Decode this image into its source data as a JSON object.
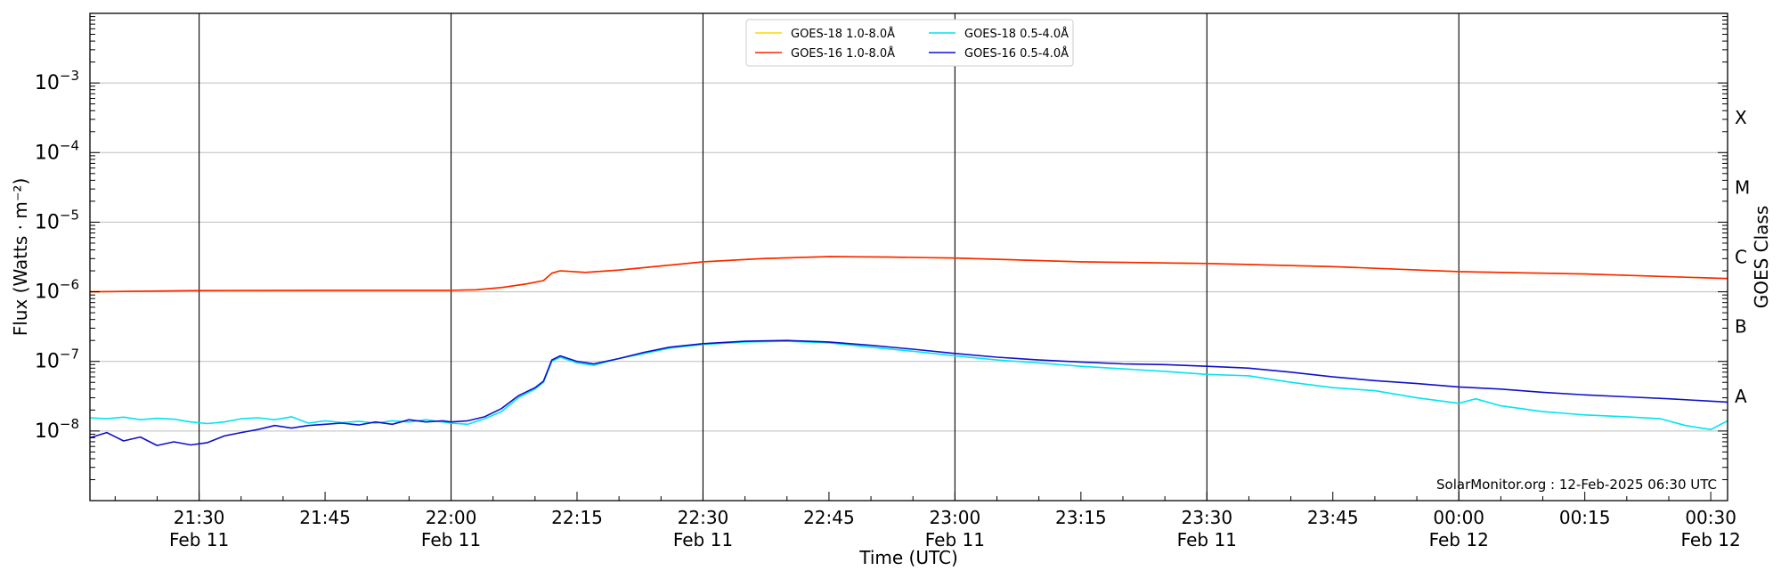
{
  "chart_data": {
    "type": "line",
    "title": "",
    "xlabel": "Time (UTC)",
    "ylabel": "Flux (Watts · m⁻²)",
    "ylabel_right": "GOES Class",
    "yscale": "log",
    "ylim": [
      1e-09,
      0.01
    ],
    "xlim": [
      "2025-02-11 21:17",
      "2025-02-12 00:32"
    ],
    "y_ticks": [
      {
        "value": 1e-08,
        "base": "10",
        "exp": "−8"
      },
      {
        "value": 1e-07,
        "base": "10",
        "exp": "−7"
      },
      {
        "value": 1e-06,
        "base": "10",
        "exp": "−6"
      },
      {
        "value": 1e-05,
        "base": "10",
        "exp": "−5"
      },
      {
        "value": 0.0001,
        "base": "10",
        "exp": "−4"
      },
      {
        "value": 0.001,
        "base": "10",
        "exp": "−3"
      }
    ],
    "x_ticks": [
      {
        "time": "21:30",
        "label": "21:30",
        "date": "Feb 11"
      },
      {
        "time": "21:45",
        "label": "21:45",
        "date": ""
      },
      {
        "time": "22:00",
        "label": "22:00",
        "date": "Feb 11"
      },
      {
        "time": "22:15",
        "label": "22:15",
        "date": ""
      },
      {
        "time": "22:30",
        "label": "22:30",
        "date": "Feb 11"
      },
      {
        "time": "22:45",
        "label": "22:45",
        "date": ""
      },
      {
        "time": "23:00",
        "label": "23:00",
        "date": "Feb 11"
      },
      {
        "time": "23:15",
        "label": "23:15",
        "date": ""
      },
      {
        "time": "23:30",
        "label": "23:30",
        "date": "Feb 11"
      },
      {
        "time": "23:45",
        "label": "23:45",
        "date": ""
      },
      {
        "time": "24:00",
        "label": "00:00",
        "date": "Feb 12"
      },
      {
        "time": "24:15",
        "label": "00:15",
        "date": ""
      },
      {
        "time": "24:30",
        "label": "00:30",
        "date": "Feb 12"
      }
    ],
    "class_levels": [
      {
        "label": "A",
        "min": 1e-08,
        "max": 1e-07
      },
      {
        "label": "B",
        "min": 1e-07,
        "max": 1e-06
      },
      {
        "label": "C",
        "min": 1e-06,
        "max": 1e-05
      },
      {
        "label": "M",
        "min": 1e-05,
        "max": 0.0001
      },
      {
        "label": "X",
        "min": 0.0001,
        "max": 0.001
      }
    ],
    "horizontal_grid": true,
    "vertical_lines_at": [
      "21:30",
      "22:00",
      "22:30",
      "23:00",
      "23:30",
      "24:00"
    ],
    "legend_position": "top-center",
    "annotation": "SolarMonitor.org : 12-Feb-2025 06:30 UTC",
    "series": [
      {
        "name": "GOES-18 1.0-8.0Å",
        "color": "#ffd700",
        "points": [
          [
            "21:17",
            1e-06
          ],
          [
            "21:30",
            1.04e-06
          ],
          [
            "21:45",
            1.05e-06
          ],
          [
            "22:00",
            1.05e-06
          ],
          [
            "22:03",
            1.07e-06
          ],
          [
            "22:06",
            1.15e-06
          ],
          [
            "22:09",
            1.3e-06
          ],
          [
            "22:11",
            1.45e-06
          ],
          [
            "22:12",
            1.85e-06
          ],
          [
            "22:13",
            2e-06
          ],
          [
            "22:16",
            1.9e-06
          ],
          [
            "22:20",
            2.05e-06
          ],
          [
            "22:25",
            2.35e-06
          ],
          [
            "22:30",
            2.7e-06
          ],
          [
            "22:37",
            3e-06
          ],
          [
            "22:45",
            3.2e-06
          ],
          [
            "22:52",
            3.15e-06
          ],
          [
            "23:00",
            3.05e-06
          ],
          [
            "23:15",
            2.7e-06
          ],
          [
            "23:30",
            2.55e-06
          ],
          [
            "23:45",
            2.3e-06
          ],
          [
            "24:00",
            1.95e-06
          ],
          [
            "24:15",
            1.8e-06
          ],
          [
            "24:32",
            1.55e-06
          ]
        ]
      },
      {
        "name": "GOES-16 1.0-8.0Å",
        "color": "#ff2200",
        "points": [
          [
            "21:17",
            1e-06
          ],
          [
            "21:30",
            1.04e-06
          ],
          [
            "21:45",
            1.05e-06
          ],
          [
            "22:00",
            1.05e-06
          ],
          [
            "22:03",
            1.07e-06
          ],
          [
            "22:06",
            1.15e-06
          ],
          [
            "22:09",
            1.3e-06
          ],
          [
            "22:11",
            1.45e-06
          ],
          [
            "22:12",
            1.85e-06
          ],
          [
            "22:13",
            2e-06
          ],
          [
            "22:16",
            1.9e-06
          ],
          [
            "22:20",
            2.05e-06
          ],
          [
            "22:25",
            2.35e-06
          ],
          [
            "22:30",
            2.7e-06
          ],
          [
            "22:37",
            3e-06
          ],
          [
            "22:45",
            3.2e-06
          ],
          [
            "22:52",
            3.15e-06
          ],
          [
            "23:00",
            3.05e-06
          ],
          [
            "23:15",
            2.7e-06
          ],
          [
            "23:30",
            2.55e-06
          ],
          [
            "23:45",
            2.3e-06
          ],
          [
            "24:00",
            1.95e-06
          ],
          [
            "24:15",
            1.8e-06
          ],
          [
            "24:32",
            1.55e-06
          ]
        ]
      },
      {
        "name": "GOES-18 0.5-4.0Å",
        "color": "#00e5ee",
        "points": [
          [
            "21:17",
            1.55e-08
          ],
          [
            "21:19",
            1.5e-08
          ],
          [
            "21:21",
            1.58e-08
          ],
          [
            "21:23",
            1.45e-08
          ],
          [
            "21:25",
            1.52e-08
          ],
          [
            "21:27",
            1.48e-08
          ],
          [
            "21:29",
            1.35e-08
          ],
          [
            "21:31",
            1.28e-08
          ],
          [
            "21:33",
            1.35e-08
          ],
          [
            "21:35",
            1.5e-08
          ],
          [
            "21:37",
            1.55e-08
          ],
          [
            "21:39",
            1.45e-08
          ],
          [
            "21:41",
            1.6e-08
          ],
          [
            "21:43",
            1.3e-08
          ],
          [
            "21:45",
            1.4e-08
          ],
          [
            "21:47",
            1.32e-08
          ],
          [
            "21:49",
            1.38e-08
          ],
          [
            "21:51",
            1.3e-08
          ],
          [
            "21:53",
            1.4e-08
          ],
          [
            "21:55",
            1.35e-08
          ],
          [
            "21:57",
            1.45e-08
          ],
          [
            "21:59",
            1.35e-08
          ],
          [
            "22:00",
            1.3e-08
          ],
          [
            "22:02",
            1.25e-08
          ],
          [
            "22:04",
            1.5e-08
          ],
          [
            "22:06",
            1.9e-08
          ],
          [
            "22:08",
            3e-08
          ],
          [
            "22:10",
            4e-08
          ],
          [
            "22:11",
            5e-08
          ],
          [
            "22:12",
            1e-07
          ],
          [
            "22:13",
            1.15e-07
          ],
          [
            "22:15",
            9.5e-08
          ],
          [
            "22:17",
            8.8e-08
          ],
          [
            "22:20",
            1.1e-07
          ],
          [
            "22:23",
            1.3e-07
          ],
          [
            "22:26",
            1.55e-07
          ],
          [
            "22:30",
            1.75e-07
          ],
          [
            "22:35",
            1.9e-07
          ],
          [
            "22:40",
            1.95e-07
          ],
          [
            "22:45",
            1.85e-07
          ],
          [
            "22:50",
            1.6e-07
          ],
          [
            "22:55",
            1.4e-07
          ],
          [
            "23:00",
            1.2e-07
          ],
          [
            "23:05",
            1.05e-07
          ],
          [
            "23:10",
            9.5e-08
          ],
          [
            "23:15",
            8.5e-08
          ],
          [
            "23:20",
            7.8e-08
          ],
          [
            "23:25",
            7.2e-08
          ],
          [
            "23:30",
            6.5e-08
          ],
          [
            "23:35",
            6.2e-08
          ],
          [
            "23:40",
            5e-08
          ],
          [
            "23:45",
            4.2e-08
          ],
          [
            "23:50",
            3.8e-08
          ],
          [
            "23:55",
            3e-08
          ],
          [
            "24:00",
            2.5e-08
          ],
          [
            "24:02",
            2.9e-08
          ],
          [
            "24:05",
            2.3e-08
          ],
          [
            "24:10",
            1.9e-08
          ],
          [
            "24:15",
            1.7e-08
          ],
          [
            "24:20",
            1.6e-08
          ],
          [
            "24:24",
            1.5e-08
          ],
          [
            "24:27",
            1.2e-08
          ],
          [
            "24:30",
            1.05e-08
          ],
          [
            "24:32",
            1.4e-08
          ]
        ]
      },
      {
        "name": "GOES-16 0.5-4.0Å",
        "color": "#1010cc",
        "points": [
          [
            "21:17",
            8e-09
          ],
          [
            "21:19",
            9.5e-09
          ],
          [
            "21:21",
            7.2e-09
          ],
          [
            "21:23",
            8.2e-09
          ],
          [
            "21:25",
            6.2e-09
          ],
          [
            "21:27",
            7e-09
          ],
          [
            "21:29",
            6.3e-09
          ],
          [
            "21:31",
            6.8e-09
          ],
          [
            "21:33",
            8.5e-09
          ],
          [
            "21:35",
            9.5e-09
          ],
          [
            "21:37",
            1.05e-08
          ],
          [
            "21:39",
            1.2e-08
          ],
          [
            "21:41",
            1.1e-08
          ],
          [
            "21:43",
            1.2e-08
          ],
          [
            "21:45",
            1.25e-08
          ],
          [
            "21:47",
            1.3e-08
          ],
          [
            "21:49",
            1.22e-08
          ],
          [
            "21:51",
            1.35e-08
          ],
          [
            "21:53",
            1.25e-08
          ],
          [
            "21:55",
            1.45e-08
          ],
          [
            "21:57",
            1.35e-08
          ],
          [
            "21:59",
            1.4e-08
          ],
          [
            "22:00",
            1.35e-08
          ],
          [
            "22:02",
            1.4e-08
          ],
          [
            "22:04",
            1.6e-08
          ],
          [
            "22:06",
            2.1e-08
          ],
          [
            "22:08",
            3.2e-08
          ],
          [
            "22:10",
            4.2e-08
          ],
          [
            "22:11",
            5.2e-08
          ],
          [
            "22:12",
            1.05e-07
          ],
          [
            "22:13",
            1.2e-07
          ],
          [
            "22:15",
            1e-07
          ],
          [
            "22:17",
            9.2e-08
          ],
          [
            "22:20",
            1.1e-07
          ],
          [
            "22:23",
            1.35e-07
          ],
          [
            "22:26",
            1.6e-07
          ],
          [
            "22:30",
            1.8e-07
          ],
          [
            "22:35",
            1.95e-07
          ],
          [
            "22:40",
            2e-07
          ],
          [
            "22:45",
            1.9e-07
          ],
          [
            "22:50",
            1.7e-07
          ],
          [
            "22:55",
            1.5e-07
          ],
          [
            "23:00",
            1.3e-07
          ],
          [
            "23:05",
            1.15e-07
          ],
          [
            "23:10",
            1.05e-07
          ],
          [
            "23:15",
            9.8e-08
          ],
          [
            "23:20",
            9.2e-08
          ],
          [
            "23:25",
            9e-08
          ],
          [
            "23:30",
            8.5e-08
          ],
          [
            "23:35",
            8e-08
          ],
          [
            "23:40",
            7e-08
          ],
          [
            "23:45",
            6e-08
          ],
          [
            "23:50",
            5.3e-08
          ],
          [
            "23:55",
            4.8e-08
          ],
          [
            "24:00",
            4.3e-08
          ],
          [
            "24:05",
            4e-08
          ],
          [
            "24:10",
            3.6e-08
          ],
          [
            "24:15",
            3.3e-08
          ],
          [
            "24:20",
            3.1e-08
          ],
          [
            "24:25",
            2.9e-08
          ],
          [
            "24:32",
            2.6e-08
          ]
        ]
      }
    ]
  }
}
